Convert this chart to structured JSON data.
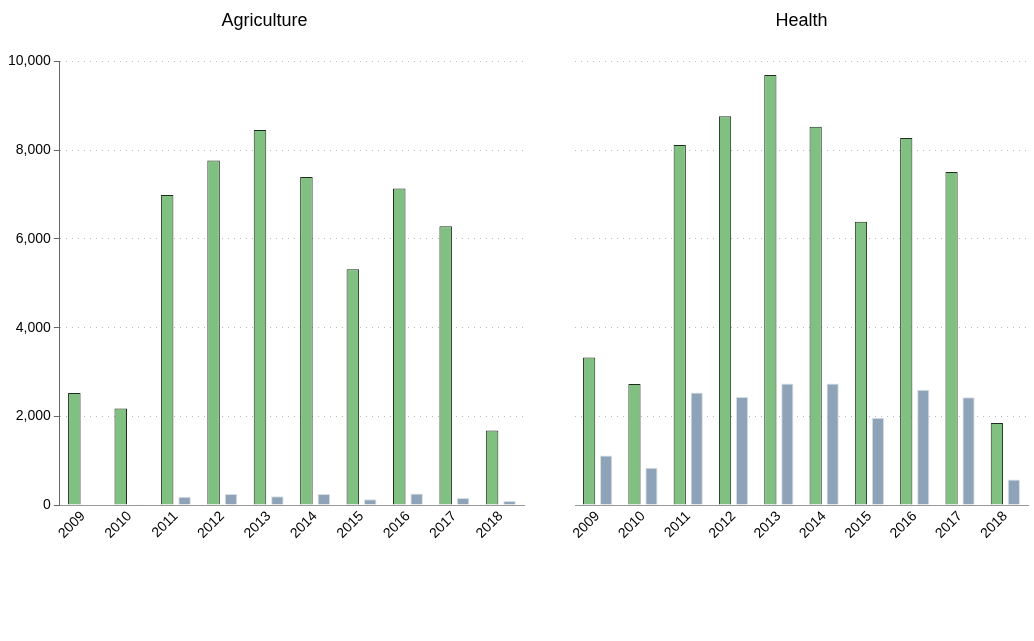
{
  "chart_data": [
    {
      "type": "bar",
      "title": "Agriculture",
      "categories": [
        "2009",
        "2010",
        "2011",
        "2012",
        "2013",
        "2014",
        "2015",
        "2016",
        "2017",
        "2018"
      ],
      "series": [
        {
          "color": "#80c080",
          "values": [
            2530,
            2180,
            6990,
            7770,
            8460,
            7400,
            5320,
            7140,
            6290,
            1680
          ]
        },
        {
          "color": "#8ea3b8",
          "values": [
            null,
            20,
            190,
            250,
            200,
            250,
            130,
            260,
            160,
            90
          ]
        }
      ],
      "ylim": [
        0,
        10000
      ],
      "yticks": [
        {
          "value": 0,
          "label": "0"
        },
        {
          "value": 2000,
          "label": "2,000"
        },
        {
          "value": 4000,
          "label": "4,000"
        },
        {
          "value": 6000,
          "label": "6,000"
        },
        {
          "value": 8000,
          "label": "8,000"
        },
        {
          "value": 10000,
          "label": "10,000"
        }
      ],
      "grid": "y"
    },
    {
      "type": "bar",
      "title": "Health",
      "categories": [
        "2009",
        "2010",
        "2011",
        "2012",
        "2013",
        "2014",
        "2015",
        "2016",
        "2017",
        "2018"
      ],
      "series": [
        {
          "color": "#80c080",
          "values": [
            3330,
            2730,
            8120,
            8770,
            9700,
            8530,
            6390,
            8280,
            7510,
            1850
          ]
        },
        {
          "color": "#8ea3b8",
          "values": [
            1120,
            840,
            2540,
            2440,
            2740,
            2740,
            1970,
            2600,
            2430,
            580
          ]
        }
      ],
      "ylim": [
        0,
        10000
      ],
      "yticks": [
        0,
        2000,
        4000,
        6000,
        8000,
        10000
      ],
      "grid": "y",
      "tick_labels": "x"
    }
  ]
}
